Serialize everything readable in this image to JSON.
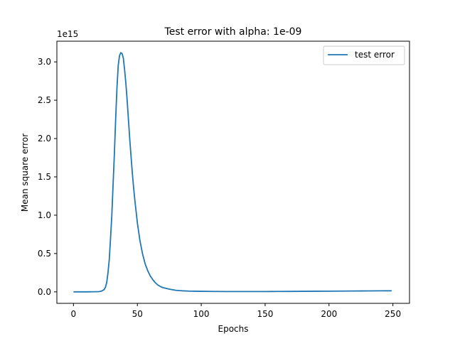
{
  "chart_data": {
    "type": "line",
    "title": "Test error with alpha: 1e-09",
    "xlabel": "Epochs",
    "ylabel": "Mean square error",
    "y_scale_label": "1e15",
    "y_scale": 1000000000000000.0,
    "xlim": [
      -13,
      263
    ],
    "ylim": [
      -0.15,
      3.27
    ],
    "x_ticks": [
      0,
      50,
      100,
      150,
      200,
      250
    ],
    "x_tick_labels": [
      "0",
      "50",
      "100",
      "150",
      "200",
      "250"
    ],
    "y_ticks": [
      0.0,
      0.5,
      1.0,
      1.5,
      2.0,
      2.5,
      3.0
    ],
    "y_tick_labels": [
      "0.0",
      "0.5",
      "1.0",
      "1.5",
      "2.0",
      "2.5",
      "3.0"
    ],
    "grid": false,
    "legend_position": "top-right",
    "series": [
      {
        "name": "test error",
        "color": "#1f77b4",
        "x": [
          0,
          10,
          20,
          22,
          24,
          25,
          26,
          27,
          28,
          29,
          30,
          31,
          32,
          33,
          34,
          35,
          36,
          37,
          38,
          39,
          40,
          41,
          42,
          43,
          44,
          45,
          46,
          47,
          48,
          50,
          52,
          54,
          56,
          58,
          60,
          62,
          64,
          66,
          68,
          70,
          75,
          80,
          85,
          90,
          95,
          100,
          110,
          120,
          130,
          140,
          150,
          160,
          170,
          180,
          190,
          200,
          210,
          220,
          230,
          240,
          249
        ],
        "values": [
          0.0,
          0.0,
          0.003,
          0.01,
          0.03,
          0.06,
          0.12,
          0.25,
          0.42,
          0.7,
          1.0,
          1.4,
          1.8,
          2.25,
          2.65,
          2.95,
          3.08,
          3.12,
          3.11,
          3.05,
          2.9,
          2.72,
          2.5,
          2.25,
          2.0,
          1.78,
          1.56,
          1.37,
          1.2,
          0.9,
          0.67,
          0.5,
          0.37,
          0.28,
          0.21,
          0.16,
          0.12,
          0.09,
          0.07,
          0.055,
          0.035,
          0.02,
          0.014,
          0.01,
          0.008,
          0.007,
          0.005,
          0.004,
          0.004,
          0.004,
          0.004,
          0.005,
          0.006,
          0.007,
          0.008,
          0.009,
          0.01,
          0.011,
          0.012,
          0.013,
          0.014
        ]
      }
    ]
  }
}
